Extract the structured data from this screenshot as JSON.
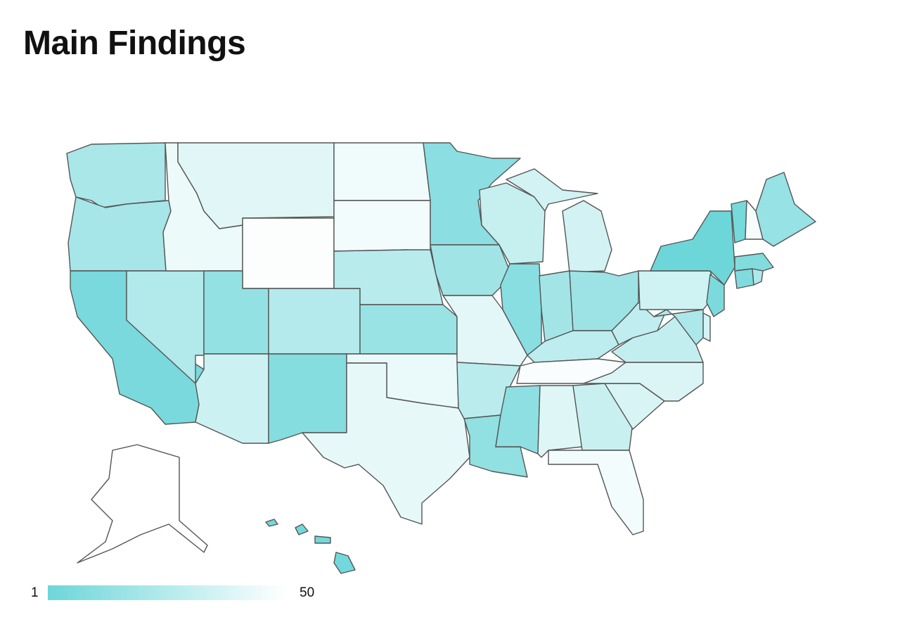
{
  "header": {
    "title": "Main Findings"
  },
  "chart_data": {
    "type": "choropleth",
    "values": [
      21,
      20,
      5,
      24,
      44,
      40,
      49,
      14,
      33,
      25,
      9,
      45,
      46,
      26,
      16,
      43,
      42,
      11,
      18,
      41,
      27,
      13,
      31,
      10,
      19,
      35,
      17,
      28,
      48,
      12,
      39,
      32,
      46,
      37,
      38,
      30,
      29,
      34,
      1,
      6,
      36,
      22,
      4,
      47,
      15,
      8,
      7,
      23,
      50,
      3
    ],
    "color_scale": {
      "min": 1,
      "max": 50,
      "min_color": "#6dd6d9",
      "max_color": "#ffffff"
    }
  }
}
